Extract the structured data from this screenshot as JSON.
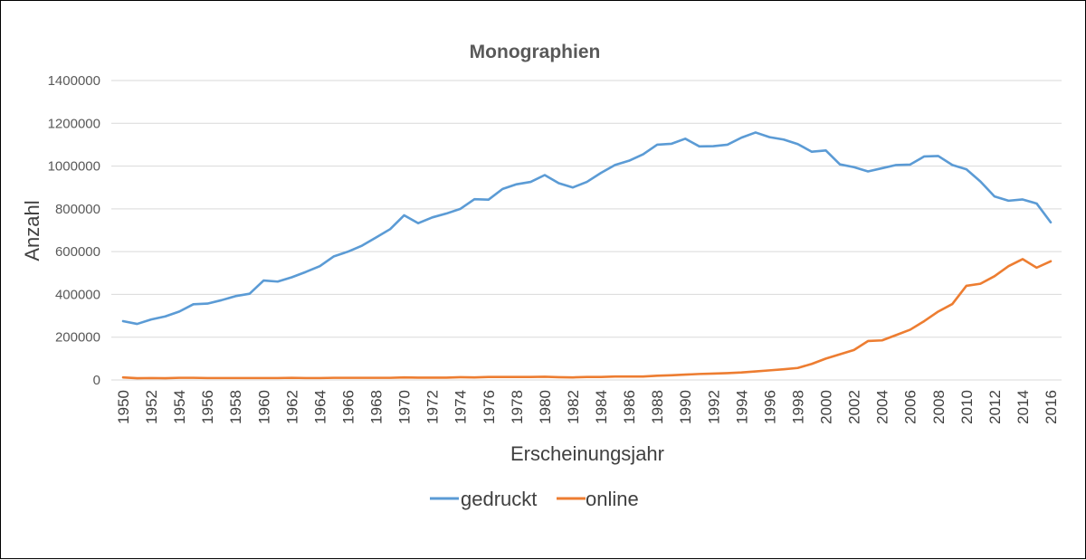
{
  "chart_data": {
    "type": "line",
    "title": "Monographien",
    "xlabel": "Erscheinungsjahr",
    "ylabel": "Anzahl",
    "ylim": [
      0,
      1400000
    ],
    "yticks": [
      "0",
      "200000",
      "400000",
      "600000",
      "800000",
      "1000000",
      "1200000",
      "1400000"
    ],
    "grid": "horizontal",
    "legend_position": "bottom",
    "x": [
      1950,
      1951,
      1952,
      1953,
      1954,
      1955,
      1956,
      1957,
      1958,
      1959,
      1960,
      1961,
      1962,
      1963,
      1964,
      1965,
      1966,
      1967,
      1968,
      1969,
      1970,
      1971,
      1972,
      1973,
      1974,
      1975,
      1976,
      1977,
      1978,
      1979,
      1980,
      1981,
      1982,
      1983,
      1984,
      1985,
      1986,
      1987,
      1988,
      1989,
      1990,
      1991,
      1992,
      1993,
      1994,
      1995,
      1996,
      1997,
      1998,
      1999,
      2000,
      2001,
      2002,
      2003,
      2004,
      2005,
      2006,
      2007,
      2008,
      2009,
      2010,
      2011,
      2012,
      2013,
      2014,
      2015,
      2016
    ],
    "xticks": [
      "1950",
      "1952",
      "1954",
      "1956",
      "1958",
      "1960",
      "1962",
      "1964",
      "1966",
      "1968",
      "1970",
      "1972",
      "1974",
      "1976",
      "1978",
      "1980",
      "1982",
      "1984",
      "1986",
      "1988",
      "1990",
      "1992",
      "1994",
      "1996",
      "1998",
      "2000",
      "2002",
      "2004",
      "2006",
      "2008",
      "2010",
      "2012",
      "2014",
      "2016"
    ],
    "series": [
      {
        "name": "gedruckt",
        "color": "#5B9BD5",
        "values": [
          275000,
          262000,
          283000,
          297000,
          320000,
          354000,
          357000,
          373000,
          392000,
          403000,
          465000,
          460000,
          480000,
          505000,
          532000,
          578000,
          600000,
          628000,
          666000,
          705000,
          770000,
          733000,
          760000,
          778000,
          800000,
          845000,
          843000,
          893000,
          915000,
          926000,
          958000,
          920000,
          900000,
          926000,
          968000,
          1005000,
          1025000,
          1055000,
          1100000,
          1104000,
          1128000,
          1092000,
          1093000,
          1100000,
          1133000,
          1157000,
          1135000,
          1124000,
          1103000,
          1067000,
          1073000,
          1008000,
          995000,
          975000,
          990000,
          1005000,
          1007000,
          1045000,
          1047000,
          1005000,
          985000,
          928000,
          858000,
          838000,
          844000,
          825000,
          737000
        ]
      },
      {
        "name": "online",
        "color": "#ED7D31",
        "values": [
          12000,
          8000,
          9000,
          8000,
          10000,
          10000,
          9000,
          9000,
          9000,
          9000,
          9000,
          9000,
          10000,
          9000,
          9000,
          10000,
          10000,
          10000,
          10000,
          10000,
          12000,
          11000,
          11000,
          11000,
          13000,
          12000,
          14000,
          14000,
          14000,
          14000,
          15000,
          13000,
          12000,
          14000,
          14000,
          16000,
          16000,
          16000,
          20000,
          22000,
          25000,
          28000,
          30000,
          32000,
          35000,
          40000,
          45000,
          50000,
          56000,
          75000,
          100000,
          120000,
          140000,
          182000,
          185000,
          210000,
          235000,
          275000,
          320000,
          355000,
          440000,
          450000,
          485000,
          532000,
          565000,
          525000,
          555000
        ]
      }
    ]
  }
}
